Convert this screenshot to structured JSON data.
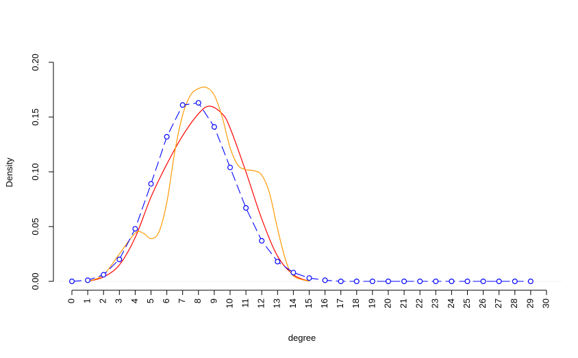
{
  "chart_data": {
    "type": "line",
    "title": "",
    "xlabel": "degree",
    "ylabel": "Density",
    "xlim": [
      0,
      30
    ],
    "ylim": [
      0,
      0.2
    ],
    "x_ticks": [
      "0",
      "1",
      "2",
      "3",
      "4",
      "5",
      "6",
      "7",
      "8",
      "9",
      "10",
      "11",
      "12",
      "13",
      "14",
      "15",
      "16",
      "17",
      "18",
      "19",
      "20",
      "21",
      "22",
      "23",
      "24",
      "25",
      "26",
      "27",
      "28",
      "29",
      "30"
    ],
    "y_ticks": [
      "0.00",
      "0.05",
      "0.10",
      "0.15",
      "0.20"
    ],
    "grid": false,
    "legend": "none",
    "series": [
      {
        "color": "#0000ff",
        "style": "dashed-line-with-open-circles",
        "x": [
          0,
          1,
          2,
          3,
          4,
          5,
          6,
          7,
          8,
          9,
          10,
          11,
          12,
          13,
          14,
          15,
          16,
          17,
          18,
          19,
          20,
          21,
          22,
          23,
          24,
          25,
          26,
          27,
          28,
          29
        ],
        "y": [
          0.0,
          0.001,
          0.006,
          0.02,
          0.048,
          0.089,
          0.132,
          0.161,
          0.163,
          0.141,
          0.104,
          0.067,
          0.037,
          0.018,
          0.008,
          0.003,
          0.001,
          0.0,
          0.0,
          0.0,
          0.0,
          0.0,
          0.0,
          0.0,
          0.0,
          0.0,
          0.0,
          0.0,
          0.0,
          0.0
        ]
      },
      {
        "color": "#ff0000",
        "style": "smooth-line",
        "x": [
          1,
          2,
          3,
          4,
          5,
          6,
          7,
          8,
          8.7,
          9.5,
          10,
          11,
          12,
          13,
          14,
          15
        ],
        "y": [
          0.0,
          0.004,
          0.015,
          0.04,
          0.077,
          0.107,
          0.133,
          0.153,
          0.16,
          0.153,
          0.14,
          0.1,
          0.057,
          0.023,
          0.006,
          0.0
        ]
      },
      {
        "color": "#ff9900",
        "style": "smooth-line",
        "x": [
          1,
          2,
          3,
          4,
          4.5,
          5,
          5.5,
          6,
          6.5,
          7,
          7.5,
          8,
          8.5,
          9,
          9.5,
          10,
          10.5,
          11,
          11.5,
          12,
          12.5,
          13,
          13.5,
          14,
          15
        ],
        "y": [
          0.0,
          0.006,
          0.025,
          0.044,
          0.044,
          0.039,
          0.045,
          0.072,
          0.118,
          0.152,
          0.17,
          0.176,
          0.177,
          0.17,
          0.15,
          0.122,
          0.106,
          0.102,
          0.101,
          0.097,
          0.08,
          0.048,
          0.02,
          0.005,
          0.0
        ]
      }
    ]
  }
}
